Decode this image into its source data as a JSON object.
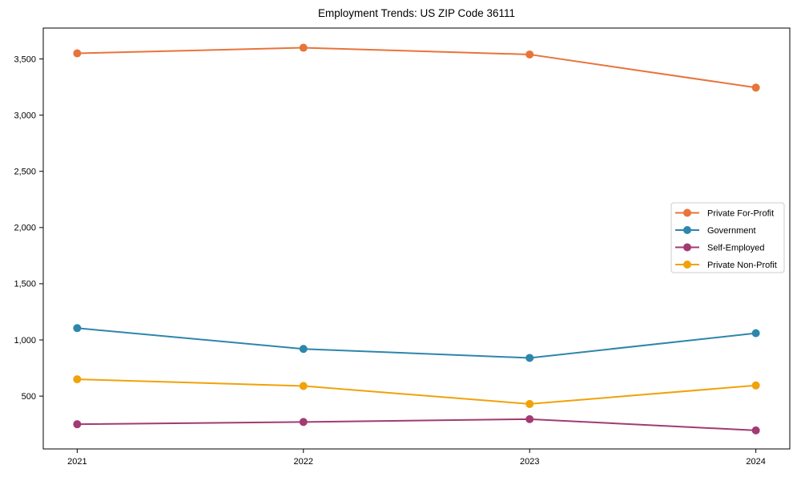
{
  "chart_data": {
    "type": "line",
    "title": "Employment Trends: US ZIP Code 36111",
    "xlabel": "",
    "ylabel": "",
    "x": [
      2021,
      2022,
      2023,
      2024
    ],
    "x_tick_labels": [
      "2021",
      "2022",
      "2023",
      "2024"
    ],
    "y_tick_values": [
      500,
      1000,
      1500,
      2000,
      2500,
      3000,
      3500
    ],
    "y_tick_labels": [
      "500",
      "1,000",
      "1,500",
      "2,000",
      "2,500",
      "3,000",
      "3,500"
    ],
    "xlim": [
      2020.85,
      2024.15
    ],
    "ylim": [
      30,
      3775
    ],
    "grid": false,
    "legend": {
      "position": "center right",
      "entries": [
        "Private For-Profit",
        "Government",
        "Self-Employed",
        "Private Non-Profit"
      ]
    },
    "series": [
      {
        "name": "Private For-Profit",
        "color": "#E8743B",
        "values": [
          3550,
          3600,
          3540,
          3245
        ]
      },
      {
        "name": "Government",
        "color": "#2E86AB",
        "values": [
          1105,
          920,
          840,
          1060
        ]
      },
      {
        "name": "Self-Employed",
        "color": "#A23B72",
        "values": [
          250,
          270,
          295,
          195
        ]
      },
      {
        "name": "Private Non-Profit",
        "color": "#F1A208",
        "values": [
          650,
          590,
          430,
          595
        ]
      }
    ],
    "axis_color": "#000000",
    "legend_border_color": "#cccccc"
  }
}
